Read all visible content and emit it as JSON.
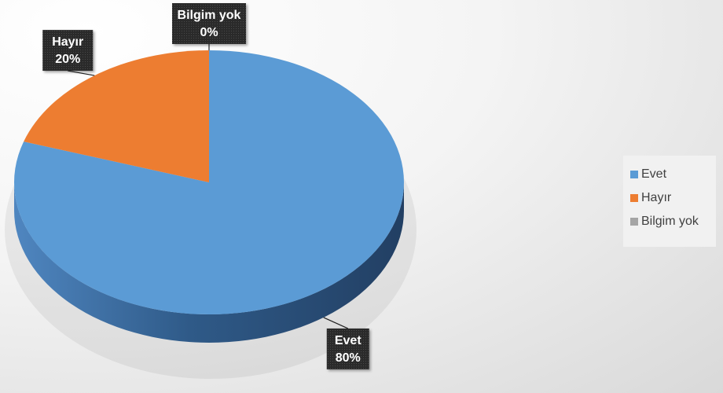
{
  "chart_data": {
    "type": "pie",
    "categories": [
      "Evet",
      "Hayır",
      "Bilgim yok"
    ],
    "values": [
      80,
      20,
      0
    ],
    "value_labels": [
      "80%",
      "20%",
      "0%"
    ],
    "colors": [
      "#5b9bd5",
      "#ed7d31",
      "#a5a5a5"
    ],
    "legend": {
      "position": "right",
      "entries": [
        "Evet",
        "Hayır",
        "Bilgim yok"
      ]
    },
    "style": "3d"
  }
}
